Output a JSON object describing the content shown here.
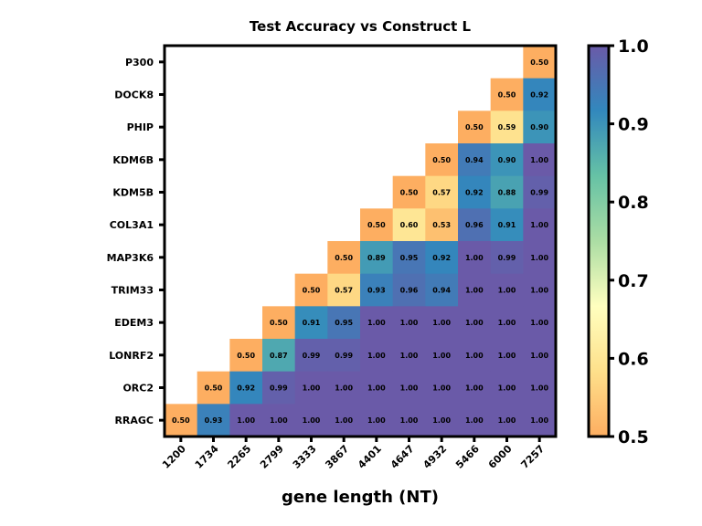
{
  "chart_data": {
    "type": "heatmap",
    "title": "Test Accuracy vs Construct L",
    "xlabel": "gene length (NT)",
    "ylabel": "",
    "x_categories": [
      "1200",
      "1734",
      "2265",
      "2799",
      "3333",
      "3867",
      "4401",
      "4647",
      "4932",
      "5466",
      "6000",
      "7257"
    ],
    "y_categories": [
      "P300",
      "DOCK8",
      "PHIP",
      "KDM6B",
      "KDM5B",
      "COL3A1",
      "MAP3K6",
      "TRIM33",
      "EDEM3",
      "LONRF2",
      "ORC2",
      "RRAGC"
    ],
    "values": [
      [
        null,
        null,
        null,
        null,
        null,
        null,
        null,
        null,
        null,
        null,
        null,
        0.5
      ],
      [
        null,
        null,
        null,
        null,
        null,
        null,
        null,
        null,
        null,
        null,
        0.5,
        0.92
      ],
      [
        null,
        null,
        null,
        null,
        null,
        null,
        null,
        null,
        null,
        0.5,
        0.59,
        0.9
      ],
      [
        null,
        null,
        null,
        null,
        null,
        null,
        null,
        null,
        0.5,
        0.94,
        0.9,
        1.0
      ],
      [
        null,
        null,
        null,
        null,
        null,
        null,
        null,
        0.5,
        0.57,
        0.92,
        0.88,
        0.99
      ],
      [
        null,
        null,
        null,
        null,
        null,
        null,
        0.5,
        0.6,
        0.53,
        0.96,
        0.91,
        1.0
      ],
      [
        null,
        null,
        null,
        null,
        null,
        0.5,
        0.89,
        0.95,
        0.92,
        1.0,
        0.99,
        1.0
      ],
      [
        null,
        null,
        null,
        null,
        0.5,
        0.57,
        0.93,
        0.96,
        0.94,
        1.0,
        1.0,
        1.0
      ],
      [
        null,
        null,
        null,
        0.5,
        0.91,
        0.95,
        1.0,
        1.0,
        1.0,
        1.0,
        1.0,
        1.0
      ],
      [
        null,
        null,
        0.5,
        0.87,
        0.99,
        0.99,
        1.0,
        1.0,
        1.0,
        1.0,
        1.0,
        1.0
      ],
      [
        null,
        0.5,
        0.92,
        0.99,
        1.0,
        1.0,
        1.0,
        1.0,
        1.0,
        1.0,
        1.0,
        1.0
      ],
      [
        0.5,
        0.93,
        1.0,
        1.0,
        1.0,
        1.0,
        1.0,
        1.0,
        1.0,
        1.0,
        1.0,
        1.0
      ]
    ],
    "value_format": "0.00",
    "colorbar": {
      "range": [
        0.5,
        1.0
      ],
      "ticks": [
        "0.5",
        "0.6",
        "0.7",
        "0.8",
        "0.9",
        "1.0"
      ],
      "colors": [
        "#fdae61",
        "#fee08b",
        "#ffffbf",
        "#abdda4",
        "#66c2a5",
        "#3288bd",
        "#6a5aa8"
      ]
    }
  }
}
